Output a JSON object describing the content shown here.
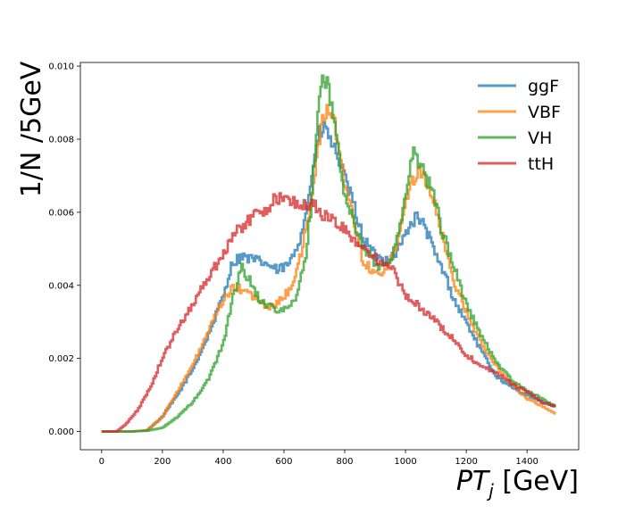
{
  "chart_data": {
    "type": "line",
    "style": "step-histogram",
    "xlabel_main": "PT",
    "xlabel_sub": "j",
    "xlabel_unit": "[GeV]",
    "ylabel": "1/N /5GeV",
    "xlim": [
      -70,
      1570
    ],
    "ylim": [
      -0.0005,
      0.0101
    ],
    "xticks": [
      0,
      200,
      400,
      600,
      800,
      1000,
      1200,
      1400
    ],
    "yticks": [
      0.0,
      0.002,
      0.004,
      0.006,
      0.008,
      0.01
    ],
    "ytick_labels": [
      "0.000",
      "0.002",
      "0.004",
      "0.006",
      "0.008",
      "0.010"
    ],
    "grid": false,
    "legend_position": "top-right",
    "series": [
      {
        "name": "ggF",
        "color": "#1f77b4",
        "points": [
          [
            0,
            0
          ],
          [
            100,
            0
          ],
          [
            150,
            3e-05
          ],
          [
            200,
            0.0004
          ],
          [
            250,
            0.001
          ],
          [
            300,
            0.0017
          ],
          [
            350,
            0.0026
          ],
          [
            400,
            0.0037
          ],
          [
            430,
            0.0046
          ],
          [
            460,
            0.0048
          ],
          [
            500,
            0.0047
          ],
          [
            540,
            0.0046
          ],
          [
            580,
            0.0044
          ],
          [
            620,
            0.0046
          ],
          [
            650,
            0.0052
          ],
          [
            680,
            0.0063
          ],
          [
            700,
            0.0075
          ],
          [
            720,
            0.0082
          ],
          [
            740,
            0.0083
          ],
          [
            760,
            0.0078
          ],
          [
            780,
            0.0075
          ],
          [
            800,
            0.0069
          ],
          [
            830,
            0.0062
          ],
          [
            860,
            0.0053
          ],
          [
            900,
            0.0048
          ],
          [
            930,
            0.0047
          ],
          [
            960,
            0.0048
          ],
          [
            990,
            0.0052
          ],
          [
            1010,
            0.0056
          ],
          [
            1040,
            0.0059
          ],
          [
            1070,
            0.0055
          ],
          [
            1100,
            0.0048
          ],
          [
            1130,
            0.0043
          ],
          [
            1160,
            0.0036
          ],
          [
            1200,
            0.003
          ],
          [
            1250,
            0.0022
          ],
          [
            1300,
            0.0015
          ],
          [
            1350,
            0.0012
          ],
          [
            1400,
            0.001
          ],
          [
            1450,
            0.0008
          ],
          [
            1490,
            0.0007
          ]
        ]
      },
      {
        "name": "VBF",
        "color": "#ff7f0e",
        "points": [
          [
            0,
            0
          ],
          [
            100,
            0
          ],
          [
            150,
            3e-05
          ],
          [
            200,
            0.0004
          ],
          [
            250,
            0.0011
          ],
          [
            300,
            0.0018
          ],
          [
            350,
            0.0027
          ],
          [
            400,
            0.0036
          ],
          [
            430,
            0.0039
          ],
          [
            460,
            0.0039
          ],
          [
            500,
            0.0037
          ],
          [
            540,
            0.0034
          ],
          [
            580,
            0.0035
          ],
          [
            620,
            0.0039
          ],
          [
            650,
            0.0046
          ],
          [
            680,
            0.0058
          ],
          [
            700,
            0.007
          ],
          [
            720,
            0.0082
          ],
          [
            740,
            0.0088
          ],
          [
            760,
            0.0087
          ],
          [
            780,
            0.0078
          ],
          [
            800,
            0.0068
          ],
          [
            830,
            0.0058
          ],
          [
            860,
            0.0047
          ],
          [
            900,
            0.0043
          ],
          [
            930,
            0.0044
          ],
          [
            960,
            0.0048
          ],
          [
            990,
            0.0059
          ],
          [
            1010,
            0.0066
          ],
          [
            1040,
            0.0072
          ],
          [
            1070,
            0.0069
          ],
          [
            1100,
            0.0061
          ],
          [
            1130,
            0.005
          ],
          [
            1160,
            0.0041
          ],
          [
            1200,
            0.0033
          ],
          [
            1250,
            0.0024
          ],
          [
            1300,
            0.0018
          ],
          [
            1350,
            0.0013
          ],
          [
            1400,
            0.0009
          ],
          [
            1450,
            0.0007
          ],
          [
            1490,
            0.0005
          ]
        ]
      },
      {
        "name": "VH",
        "color": "#2ca02c",
        "points": [
          [
            0,
            0
          ],
          [
            100,
            0
          ],
          [
            150,
            2e-05
          ],
          [
            200,
            0.0001
          ],
          [
            250,
            0.0004
          ],
          [
            300,
            0.0008
          ],
          [
            350,
            0.0014
          ],
          [
            400,
            0.0024
          ],
          [
            430,
            0.0036
          ],
          [
            460,
            0.0045
          ],
          [
            490,
            0.0041
          ],
          [
            520,
            0.0036
          ],
          [
            560,
            0.0034
          ],
          [
            600,
            0.0033
          ],
          [
            640,
            0.0036
          ],
          [
            670,
            0.0047
          ],
          [
            690,
            0.0062
          ],
          [
            710,
            0.0085
          ],
          [
            720,
            0.0095
          ],
          [
            740,
            0.0095
          ],
          [
            760,
            0.0089
          ],
          [
            780,
            0.0076
          ],
          [
            800,
            0.0065
          ],
          [
            830,
            0.0057
          ],
          [
            860,
            0.0051
          ],
          [
            900,
            0.0046
          ],
          [
            930,
            0.0045
          ],
          [
            960,
            0.0049
          ],
          [
            990,
            0.0058
          ],
          [
            1010,
            0.0071
          ],
          [
            1030,
            0.0077
          ],
          [
            1060,
            0.0071
          ],
          [
            1090,
            0.0066
          ],
          [
            1120,
            0.0055
          ],
          [
            1160,
            0.0045
          ],
          [
            1200,
            0.0035
          ],
          [
            1250,
            0.0026
          ],
          [
            1300,
            0.0019
          ],
          [
            1350,
            0.0014
          ],
          [
            1400,
            0.0011
          ],
          [
            1450,
            0.0009
          ],
          [
            1490,
            0.0007
          ]
        ]
      },
      {
        "name": "ttH",
        "color": "#d62728",
        "points": [
          [
            0,
            0
          ],
          [
            50,
            0
          ],
          [
            80,
            0.0002
          ],
          [
            120,
            0.0006
          ],
          [
            160,
            0.0012
          ],
          [
            200,
            0.002
          ],
          [
            250,
            0.0028
          ],
          [
            300,
            0.0035
          ],
          [
            350,
            0.0042
          ],
          [
            380,
            0.0046
          ],
          [
            400,
            0.0049
          ],
          [
            430,
            0.0053
          ],
          [
            460,
            0.0056
          ],
          [
            500,
            0.0059
          ],
          [
            540,
            0.0061
          ],
          [
            580,
            0.0064
          ],
          [
            620,
            0.0063
          ],
          [
            660,
            0.0062
          ],
          [
            700,
            0.0062
          ],
          [
            730,
            0.0059
          ],
          [
            760,
            0.0058
          ],
          [
            800,
            0.0055
          ],
          [
            840,
            0.0052
          ],
          [
            880,
            0.0049
          ],
          [
            920,
            0.0046
          ],
          [
            960,
            0.0044
          ],
          [
            1000,
            0.0037
          ],
          [
            1050,
            0.0034
          ],
          [
            1100,
            0.003
          ],
          [
            1150,
            0.0026
          ],
          [
            1200,
            0.0021
          ],
          [
            1250,
            0.0018
          ],
          [
            1300,
            0.0016
          ],
          [
            1350,
            0.0013
          ],
          [
            1400,
            0.0011
          ],
          [
            1450,
            0.0008
          ],
          [
            1490,
            0.0007
          ]
        ]
      }
    ]
  }
}
